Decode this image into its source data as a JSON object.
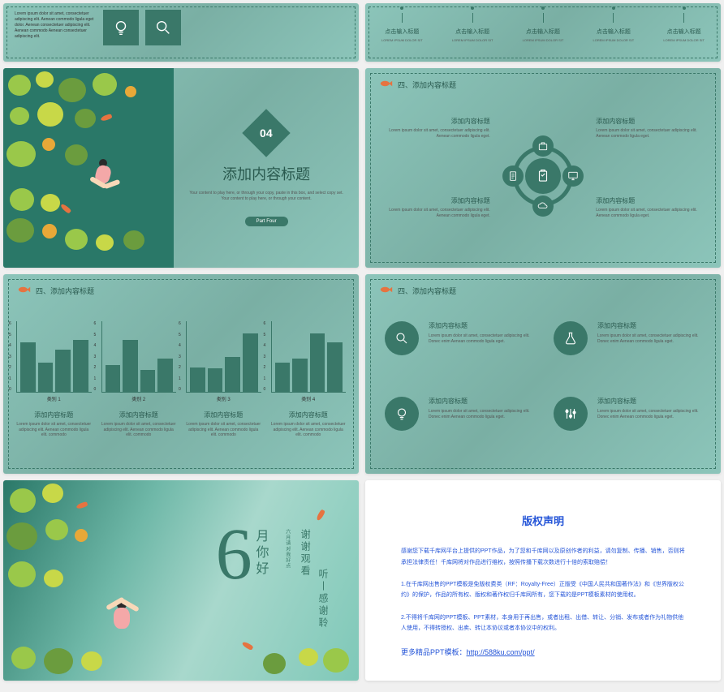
{
  "colors": {
    "teal_dark": "#3a7869",
    "teal_bg": "#7fb8ad",
    "teal_light": "#8cc5ba",
    "text_dark": "#2a5a4f",
    "text_body": "#555555",
    "blue": "#2656d8",
    "pond": "#2a7868",
    "orange": "#e67340",
    "leaf_green": "#9ac84a",
    "leaf_dark": "#6b9c3e"
  },
  "slide1": {
    "body_text": "Lorem ipsum dolor sit amet, consectetuer adipiscing elit. Aenean commodo ligula eget dolor. Aenean consectetuer adipiscing elit. Aenean commodo Aenean consectetuer adipiscing elit.",
    "icons": [
      "bulb-icon",
      "magnify-icon"
    ],
    "cols": [
      {
        "title": "点击输入标题",
        "sub": "LOREM IPSUM DOLOR SIT"
      },
      {
        "title": "点击输入标题",
        "sub": "LOREM IPSUM DOLOR SIT"
      },
      {
        "title": "点击输入标题",
        "sub": "LOREM IPSUM DOLOR SIT"
      },
      {
        "title": "点击输入标题",
        "sub": "LOREM IPSUM DOLOR SIT"
      },
      {
        "title": "点击输入标题",
        "sub": "LOREM IPSUM DOLOR SIT"
      }
    ]
  },
  "slide3": {
    "number": "04",
    "title": "添加内容标题",
    "sub": "Your content to play here, or through your copy, paste in this box, and select copy set. Your content to play here, or through your content.",
    "badge": "Part Four"
  },
  "slide4": {
    "header": "四、添加内容标题",
    "items": [
      {
        "title": "添加内容标题",
        "sub": "Lorem ipsum dolor sit amet, consectetuer adipiscing elit. Aenean commodo ligula eget."
      },
      {
        "title": "添加内容标题",
        "sub": "Lorem ipsum dolor sit amet, consectetuer adipiscing elit. Aenean commodo ligula eget."
      },
      {
        "title": "添加内容标题",
        "sub": "Lorem ipsum dolor sit amet, consectetuer adipiscing elit. Aenean commodo ligula eget."
      },
      {
        "title": "添加内容标题",
        "sub": "Lorem ipsum dolor sit amet, consectetuer adipiscing elit. Aenean commodo ligula eget."
      }
    ],
    "node_icons": [
      "briefcase-icon",
      "monitor-icon",
      "document-icon",
      "cloud-icon"
    ],
    "center_icon": "clipboard-icon"
  },
  "slide5": {
    "header": "四、添加内容标题",
    "y_ticks": [
      6,
      5,
      4,
      3,
      2,
      1,
      0
    ],
    "charts": [
      {
        "label": "类别 1",
        "title": "添加内容标题",
        "sub": "Lorem ipsum dolor sit amet, consectetuer adipiscing elit. Aenean commodo ligula elit. commodo",
        "values": [
          4.2,
          2.5,
          3.6,
          4.4
        ]
      },
      {
        "label": "类别 2",
        "title": "添加内容标题",
        "sub": "Lorem ipsum dolor sit amet, consectetuer adipiscing elit. Aenean commodo ligula elit. commodo",
        "values": [
          2.3,
          4.4,
          1.9,
          2.8
        ]
      },
      {
        "label": "类别 3",
        "title": "添加内容标题",
        "sub": "Lorem ipsum dolor sit amet, consectetuer adipiscing elit. Aenean commodo ligula elit. commodo",
        "values": [
          2.1,
          2.0,
          3.0,
          5.0
        ]
      },
      {
        "label": "类别 4",
        "title": "添加内容标题",
        "sub": "Lorem ipsum dolor sit amet, consectetuer adipiscing elit. Aenean commodo ligula elit. commodo",
        "values": [
          2.5,
          2.8,
          5.0,
          4.2
        ]
      }
    ],
    "y_max": 6,
    "bar_color": "#3a7869"
  },
  "slide6": {
    "header": "四、添加内容标题",
    "items": [
      {
        "icon": "magnify-icon",
        "title": "添加内容标题",
        "sub": "Lorem ipsum dolor sit amet, consectetuer adipiscing elit. Donec enim Aenean commodo ligula eget."
      },
      {
        "icon": "flask-icon",
        "title": "添加内容标题",
        "sub": "Lorem ipsum dolor sit amet, consectetuer adipiscing elit. Donec enim Aenean commodo ligula eget."
      },
      {
        "icon": "bulb-icon",
        "title": "添加内容标题",
        "sub": "Lorem ipsum dolor sit amet, consectetuer adipiscing elit. Donec enim Aenean commodo ligula eget."
      },
      {
        "icon": "sliders-icon",
        "title": "添加内容标题",
        "sub": "Lorem ipsum dolor sit amet, consectetuer adipiscing elit. Donec enim Aenean commodo ligula eget."
      }
    ]
  },
  "slide7": {
    "big": "6",
    "vtext1": "月你好",
    "vtext4": "六月请对我好点",
    "vtext2": "谢谢观看",
    "vtext3": "听丨感谢聆"
  },
  "slide8": {
    "title": "版权声明",
    "p1": "感谢您下载千库网平台上提供的PPT作品，为了您和千库网以及原创作者的利益，请勿复制、传播、销售，否则将承担法律责任！千库网将对作品进行维权，按照传播下载次数进行十倍的索取赔偿！",
    "p2": "1.在千库网出售的PPT模板是免版权费类（RF：Royalty-Free）正版受《中国人民共和国著作法》和《世界版权公约》的保护，作品的所有权、版权和著作权归千库网所有，您下载的是PPT模板素材的使用权。",
    "p3": "2.不得将千库网的PPT模板、PPT素材，本身用于再出售，或者出租、出借、转让、分销、发布或者作为礼物供他人使用，不得转授权、出卖、转让本协议或者本协议中的权利。",
    "more_label": "更多精品PPT模板：",
    "more_link": "http://588ku.com/ppt/"
  }
}
